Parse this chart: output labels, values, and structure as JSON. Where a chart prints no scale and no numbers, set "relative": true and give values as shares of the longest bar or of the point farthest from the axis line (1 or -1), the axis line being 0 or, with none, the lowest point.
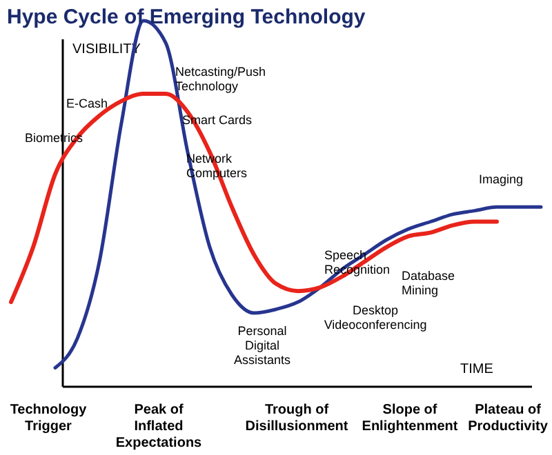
{
  "chart_data": {
    "type": "line",
    "title": "Hype Cycle of Emerging Technology",
    "xlabel": "TIME",
    "ylabel": "VISIBILITY",
    "relative": true,
    "categories": [
      null,
      null,
      null,
      null,
      null,
      null,
      null,
      null,
      null,
      null,
      null,
      null,
      null,
      null,
      null,
      null,
      null,
      null,
      null,
      null,
      null,
      null,
      null,
      null,
      null
    ],
    "series": [
      {
        "color": "#27358f",
        "values": [
          null,
          null,
          0.05,
          0.13,
          0.34,
          0.72,
          1,
          0.94,
          0.64,
          0.38,
          0.25,
          0.2,
          0.21,
          0.23,
          0.27,
          0.32,
          0.36,
          0.4,
          0.43,
          0.45,
          0.47,
          0.48,
          0.49,
          0.49,
          0.49
        ]
      },
      {
        "color": "#e8241b",
        "values": [
          0.23,
          0.38,
          0.58,
          0.68,
          0.74,
          0.78,
          0.8,
          0.8,
          0.75,
          0.64,
          0.49,
          0.36,
          0.28,
          0.26,
          0.27,
          0.3,
          0.34,
          0.38,
          0.41,
          0.42,
          0.44,
          0.45,
          0.45,
          null,
          null
        ]
      }
    ],
    "annotations": [
      "E-Cash",
      "Biometrics",
      "Netcasting/Push\nTechnology",
      "Smart Cards",
      "Network\nComputers",
      "Speech\nRecognition",
      "Database\nMining",
      "Desktop\nVideoconferencing",
      "Personal\nDigital\nAssistants",
      "Imaging",
      "Technology\nTrigger",
      "Peak of\nInflated\nExpectations",
      "Trough of\nDisillusionment",
      "Slope of\nEnlightenment",
      "Plateau of\nProductivity"
    ]
  }
}
